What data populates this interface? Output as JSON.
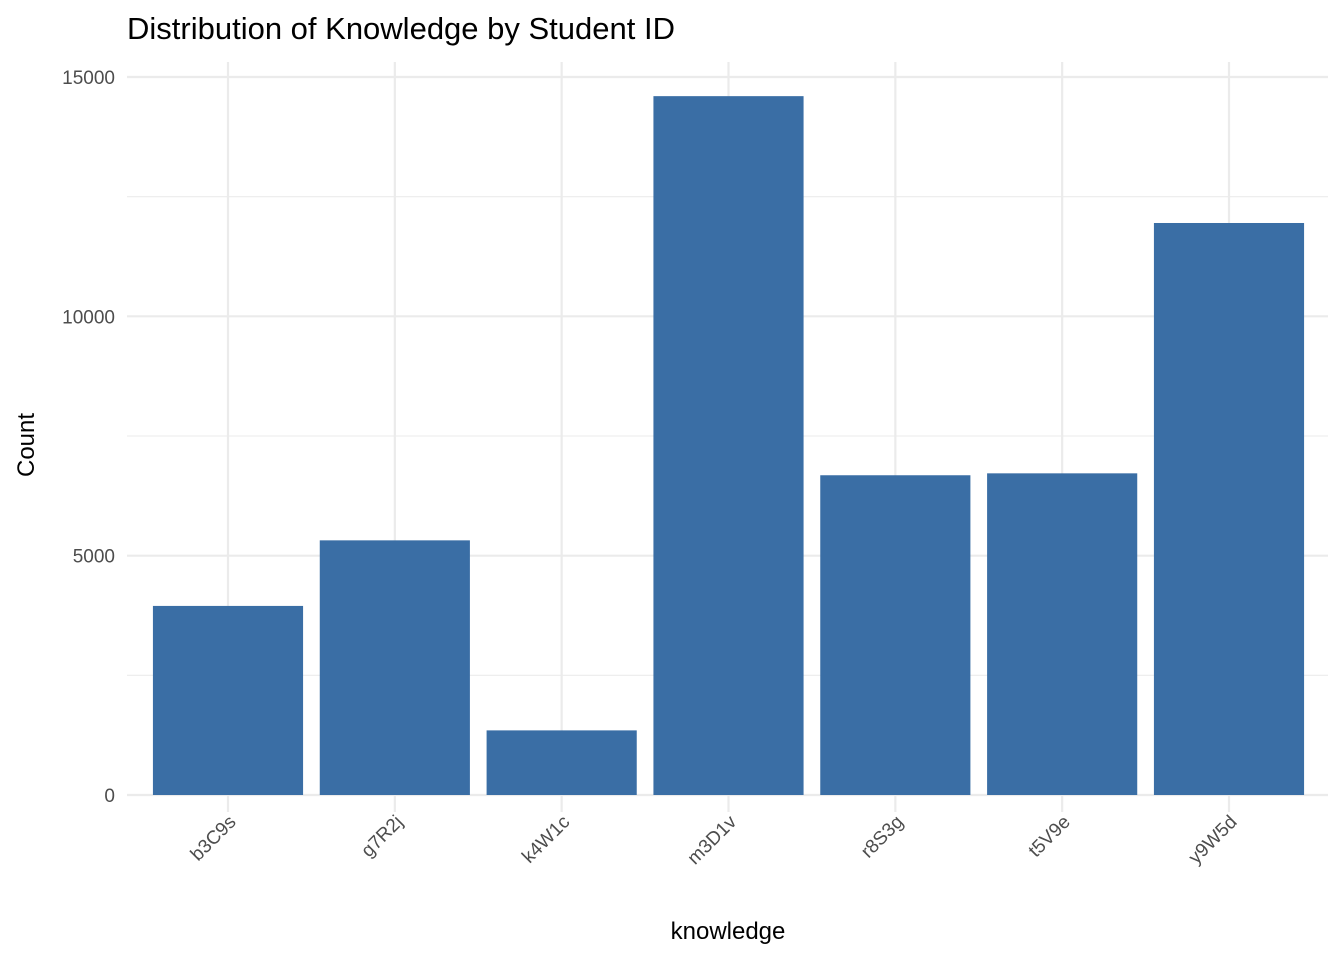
{
  "chart_data": {
    "type": "bar",
    "title": "Distribution of Knowledge by Student ID",
    "xlabel": "knowledge",
    "ylabel": "Count",
    "categories": [
      "b3C9s",
      "g7R2j",
      "k4W1c",
      "m3D1v",
      "r8S3g",
      "t5V9e",
      "y9W5d"
    ],
    "values": [
      3950,
      5320,
      1350,
      14600,
      6680,
      6720,
      11950
    ],
    "ylim": [
      0,
      15000
    ],
    "yticks": [
      0,
      5000,
      10000,
      15000
    ],
    "bar_color": "#3a6ea5",
    "grid": true,
    "legend": "none"
  }
}
